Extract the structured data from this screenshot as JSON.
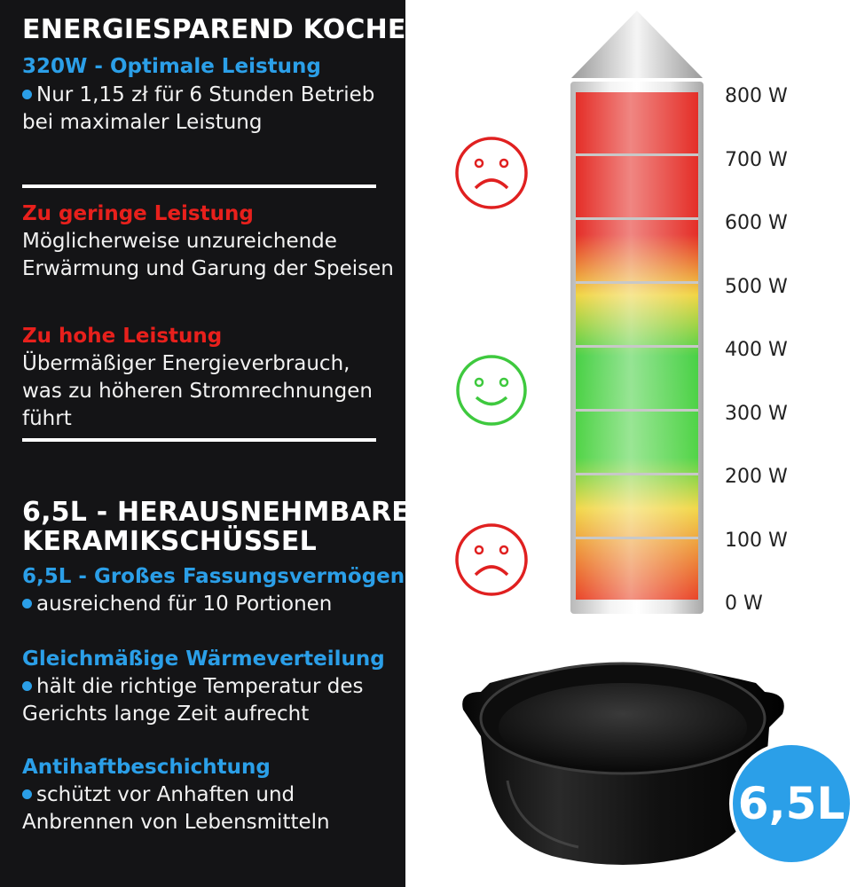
{
  "left": {
    "title1": "ENERGIESPAREND KOCHEN",
    "power_sub": "320W - Optimale Leistung",
    "power_text": "Nur 1,15 zł für 6 Stunden Betrieb bei maximaler Leistung",
    "low_title": "Zu geringe Leistung",
    "low_text": "Möglicherweise unzureichende Erwärmung und Garung der Speisen",
    "high_title": "Zu hohe Leistung",
    "high_text": "Übermäßiger Energieverbrauch, was zu höheren Stromrechnungen führt",
    "title2_line1": "6,5L - HERAUSNEHMBARE",
    "title2_line2": "KERAMIKSCHÜSSEL",
    "cap_sub": "6,5L - Großes Fassungsvermögen",
    "cap_text": "ausreichend für 10 Portionen",
    "heat_sub": "Gleichmäßige Wärmeverteilung",
    "heat_text": "hält die richtige Temperatur des Gerichts lange Zeit aufrecht",
    "nonstick_sub": "Antihaftbeschichtung",
    "nonstick_text": "schützt vor Anhaften und Anbrennen von Lebensmitteln"
  },
  "gauge": {
    "labels": [
      "800 W",
      "700 W",
      "600 W",
      "500 W",
      "400 W",
      "300 W",
      "200 W",
      "100 W",
      "0 W"
    ]
  },
  "badge": "6,5L",
  "colors": {
    "accent_blue": "#2b9fe8",
    "warning_red": "#e8201c",
    "ok_green": "#3ec93e",
    "dark_bg": "#141416"
  }
}
